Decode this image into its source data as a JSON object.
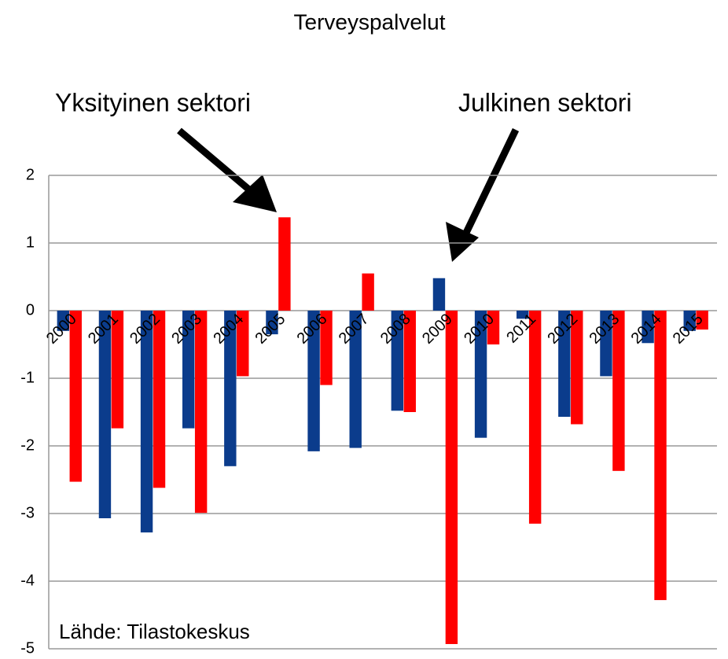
{
  "chart_data": {
    "type": "bar",
    "title": "Terveyspalvelut",
    "categories": [
      "2000",
      "2001",
      "2002",
      "2003",
      "2004",
      "2005",
      "2006",
      "2007",
      "2008",
      "2009",
      "2010",
      "2011",
      "2012",
      "2013",
      "2014",
      "2015"
    ],
    "series": [
      {
        "name": "Julkinen sektori",
        "color": "#0b3c8c",
        "values": [
          -0.3,
          -3.07,
          -3.28,
          -1.74,
          -2.3,
          -0.35,
          -2.08,
          -2.03,
          -1.48,
          0.48,
          -1.88,
          -0.12,
          -1.57,
          -0.97,
          -0.48,
          -0.3
        ]
      },
      {
        "name": "Yksityinen sektori",
        "color": "#ff0000",
        "values": [
          -2.53,
          -1.74,
          -2.62,
          -2.99,
          -0.97,
          1.38,
          -1.1,
          0.55,
          -1.5,
          -4.93,
          -0.5,
          -3.15,
          -1.68,
          -2.37,
          -4.28,
          -0.28
        ]
      }
    ],
    "ylim": [
      -5,
      2
    ],
    "yticks": [
      -5,
      -4,
      -3,
      -2,
      -1,
      0,
      1,
      2
    ],
    "grid": true,
    "source": "Lähde: Tilastokeskus"
  }
}
